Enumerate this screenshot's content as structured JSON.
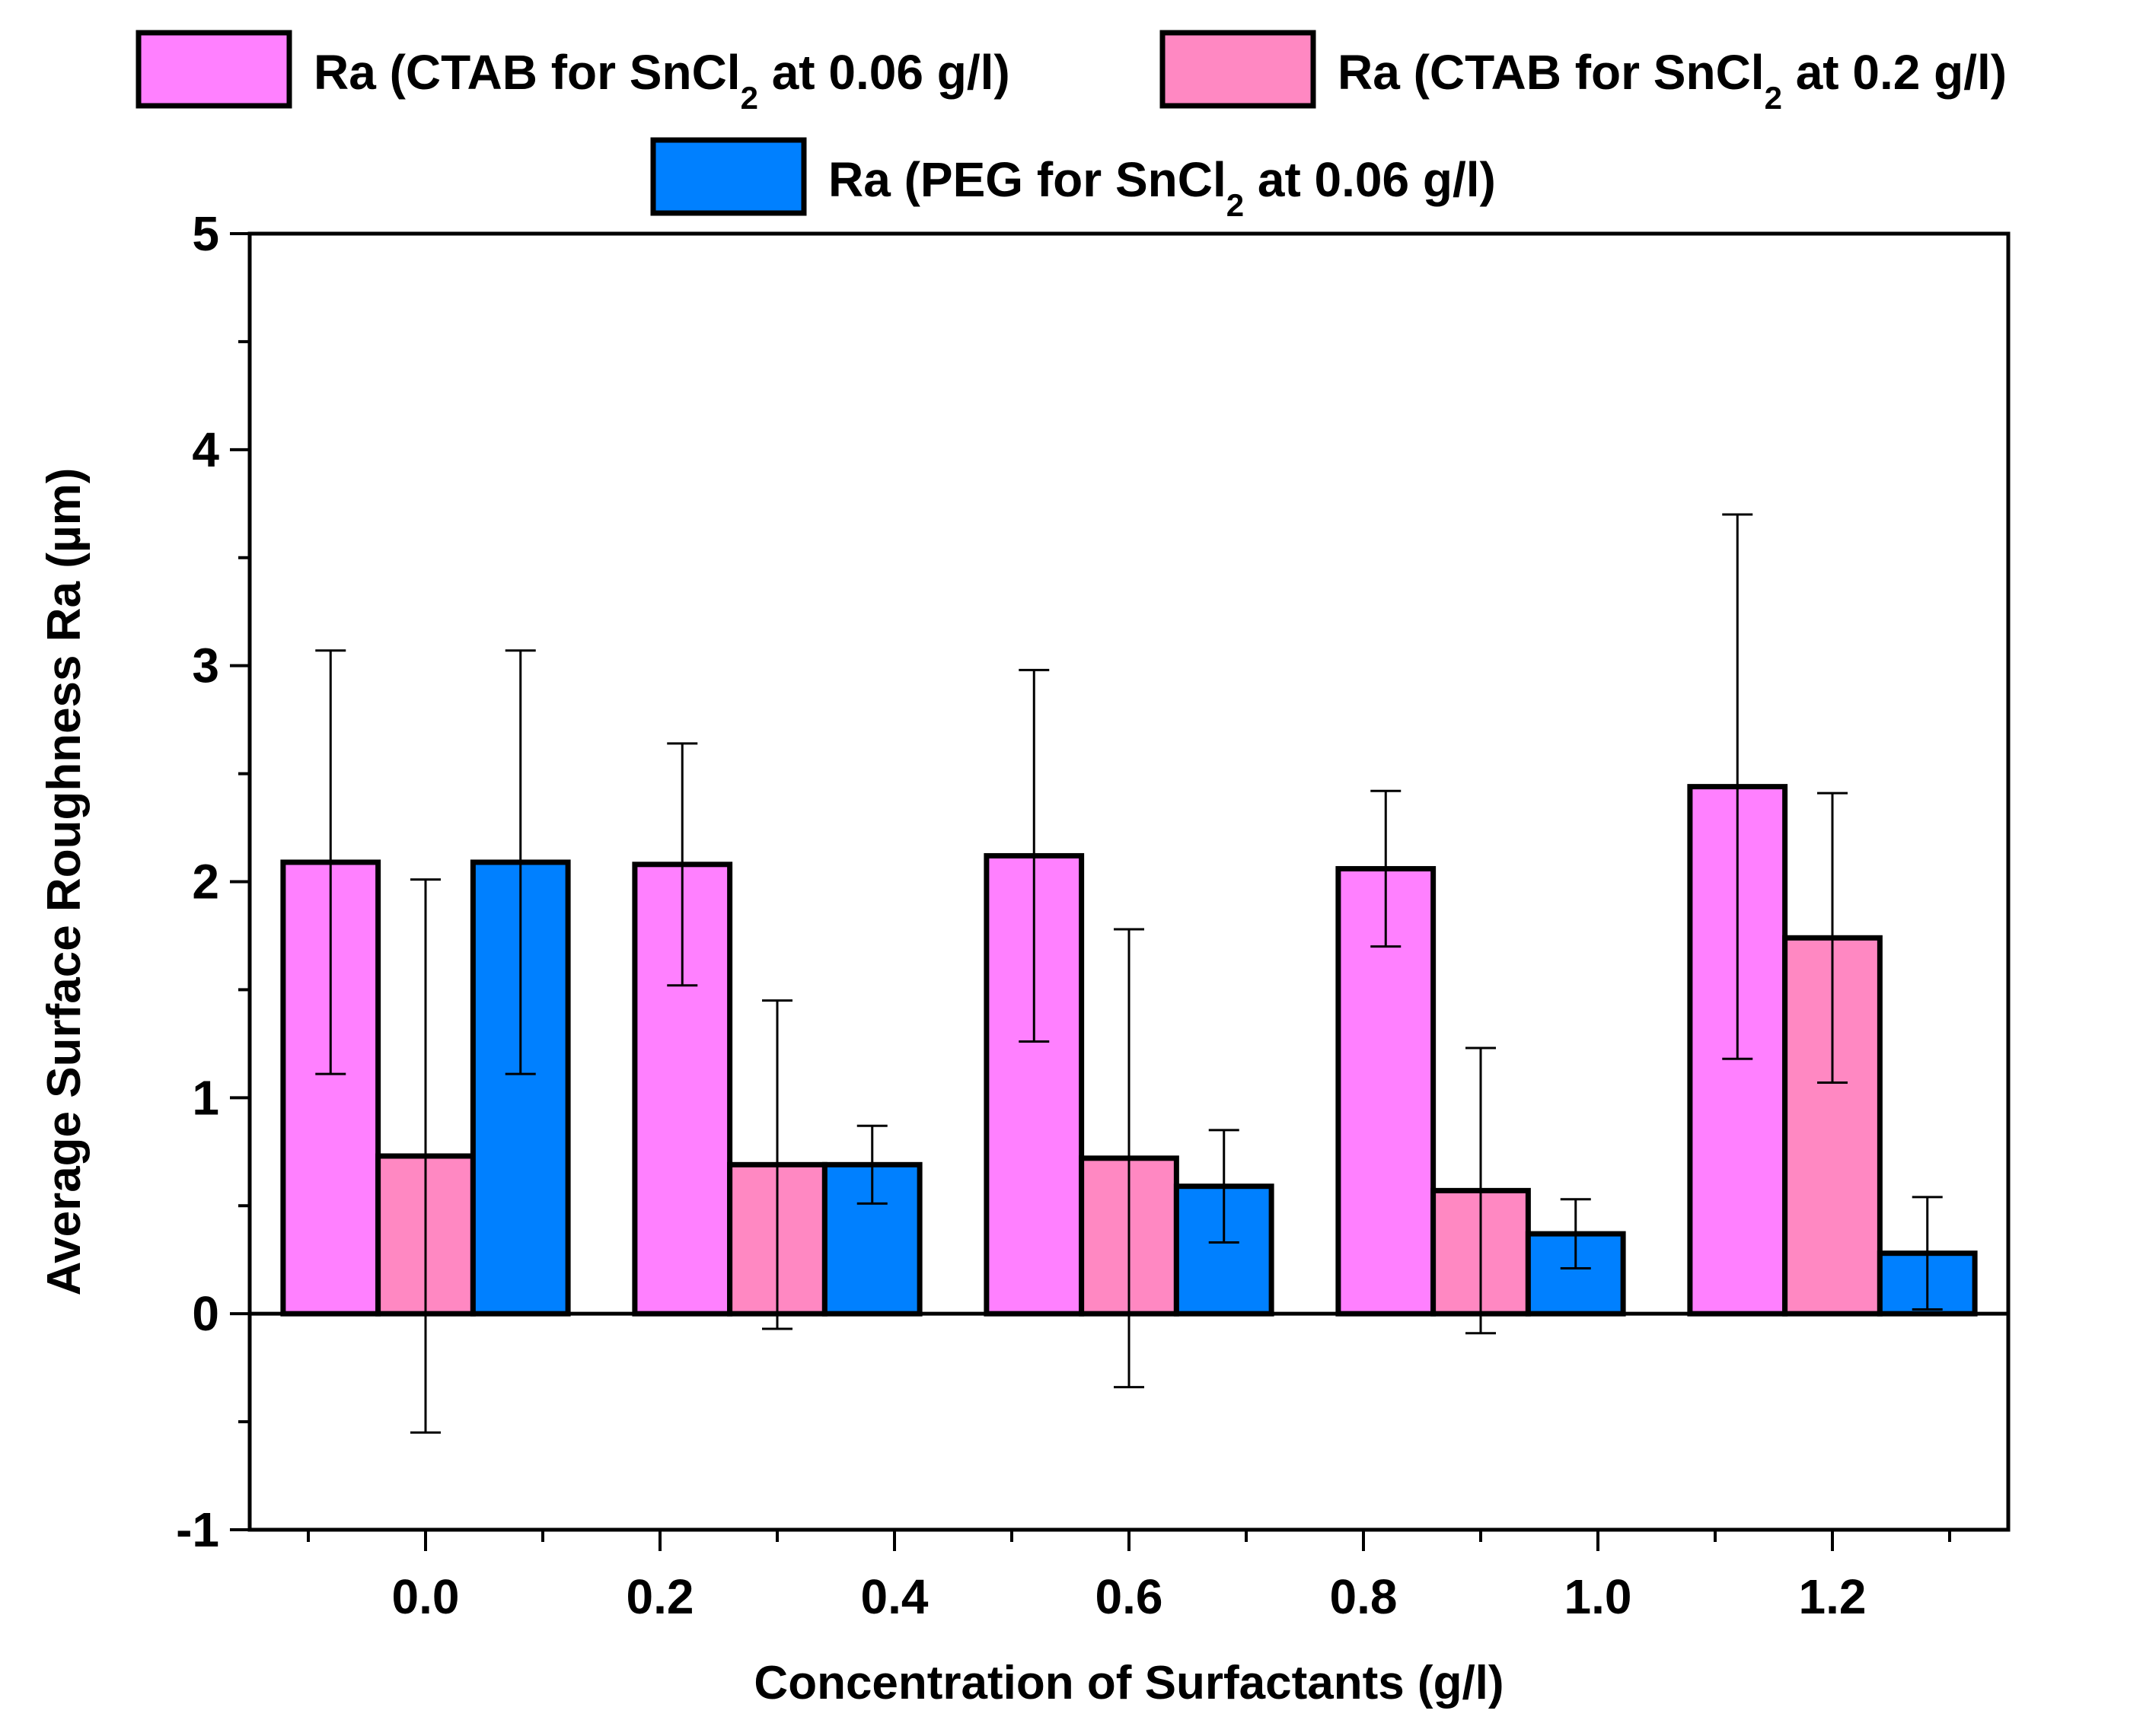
{
  "chart_data": {
    "type": "bar",
    "title": "",
    "xlabel": "Concentration of Surfactants (g/l)",
    "ylabel": "Average Surface Roughness Ra (µm)",
    "ylim": [
      -1,
      5
    ],
    "y_ticks": [
      "-1",
      "0",
      "1",
      "2",
      "3",
      "4",
      "5"
    ],
    "x_tick_labels": [
      "0.0",
      "0.2",
      "0.4",
      "0.6",
      "0.8",
      "1.0",
      "1.2"
    ],
    "x_tick_values": [
      0.0,
      0.2,
      0.4,
      0.6,
      0.8,
      1.0,
      1.2
    ],
    "xlim": [
      -0.15,
      1.35
    ],
    "group_positions": [
      0.0,
      0.3,
      0.6,
      0.9,
      1.2
    ],
    "legend": {
      "placement": "top",
      "entries": [
        {
          "prefix": "Ra (CTAB for SnCl",
          "sub": "2",
          "suffix": " at 0.06 g/l)"
        },
        {
          "prefix": "Ra (CTAB for SnCl",
          "sub": "2",
          "suffix": " at 0.2 g/l)"
        },
        {
          "prefix": "Ra (PEG for SnCl",
          "sub": "2",
          "suffix": " at 0.06 g/l)"
        }
      ]
    },
    "series": [
      {
        "name": "Ra (CTAB for SnCl2 at 0.06 g/l)",
        "color": "#FF80FF",
        "values": [
          2.09,
          2.08,
          2.12,
          2.06,
          2.44
        ],
        "errors": [
          0.98,
          0.56,
          0.86,
          0.36,
          1.26
        ]
      },
      {
        "name": "Ra (CTAB for SnCl2 at 0.2 g/l)",
        "color": "#FF88C2",
        "values": [
          0.73,
          0.69,
          0.72,
          0.57,
          1.74
        ],
        "errors": [
          1.28,
          0.76,
          1.06,
          0.66,
          0.67
        ]
      },
      {
        "name": "Ra (PEG for SnCl2 at 0.06 g/l)",
        "color": "#0080FF",
        "values": [
          2.09,
          0.69,
          0.59,
          0.37,
          0.28
        ],
        "errors": [
          0.98,
          0.18,
          0.26,
          0.16,
          0.26
        ]
      }
    ]
  }
}
